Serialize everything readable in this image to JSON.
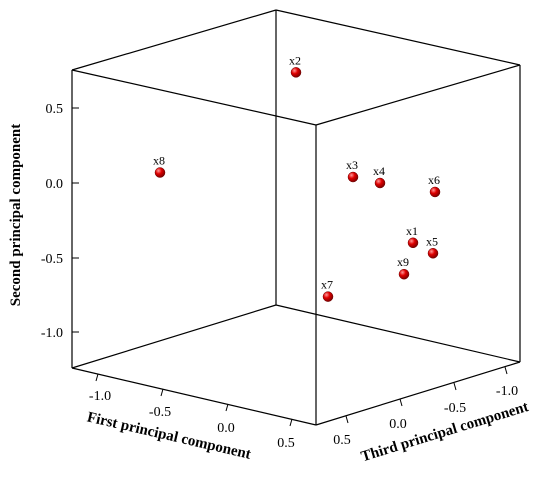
{
  "chart_data": {
    "type": "scatter3d",
    "title": "",
    "xlabel": "First principal component",
    "ylabel": "Second principal component",
    "zlabel": "Third principal component",
    "yticks": [
      "0.5",
      "0.0",
      "-0.5",
      "-1.0"
    ],
    "xticks": [
      "-1.0",
      "-0.5",
      "0.0",
      "0.5"
    ],
    "zticks": [
      "0.5",
      "0.0",
      "-0.5",
      "-1.0"
    ],
    "marker_color": "#d40000",
    "points": [
      {
        "label": "x2",
        "second": 0.74
      },
      {
        "label": "x8",
        "second": 0.07
      },
      {
        "label": "x3",
        "second": 0.04
      },
      {
        "label": "x4",
        "second": 0.0
      },
      {
        "label": "x6",
        "second": -0.06
      },
      {
        "label": "x1",
        "second": -0.4
      },
      {
        "label": "x5",
        "second": -0.47
      },
      {
        "label": "x9",
        "second": -0.61
      },
      {
        "label": "x7",
        "second": -0.76
      }
    ]
  }
}
